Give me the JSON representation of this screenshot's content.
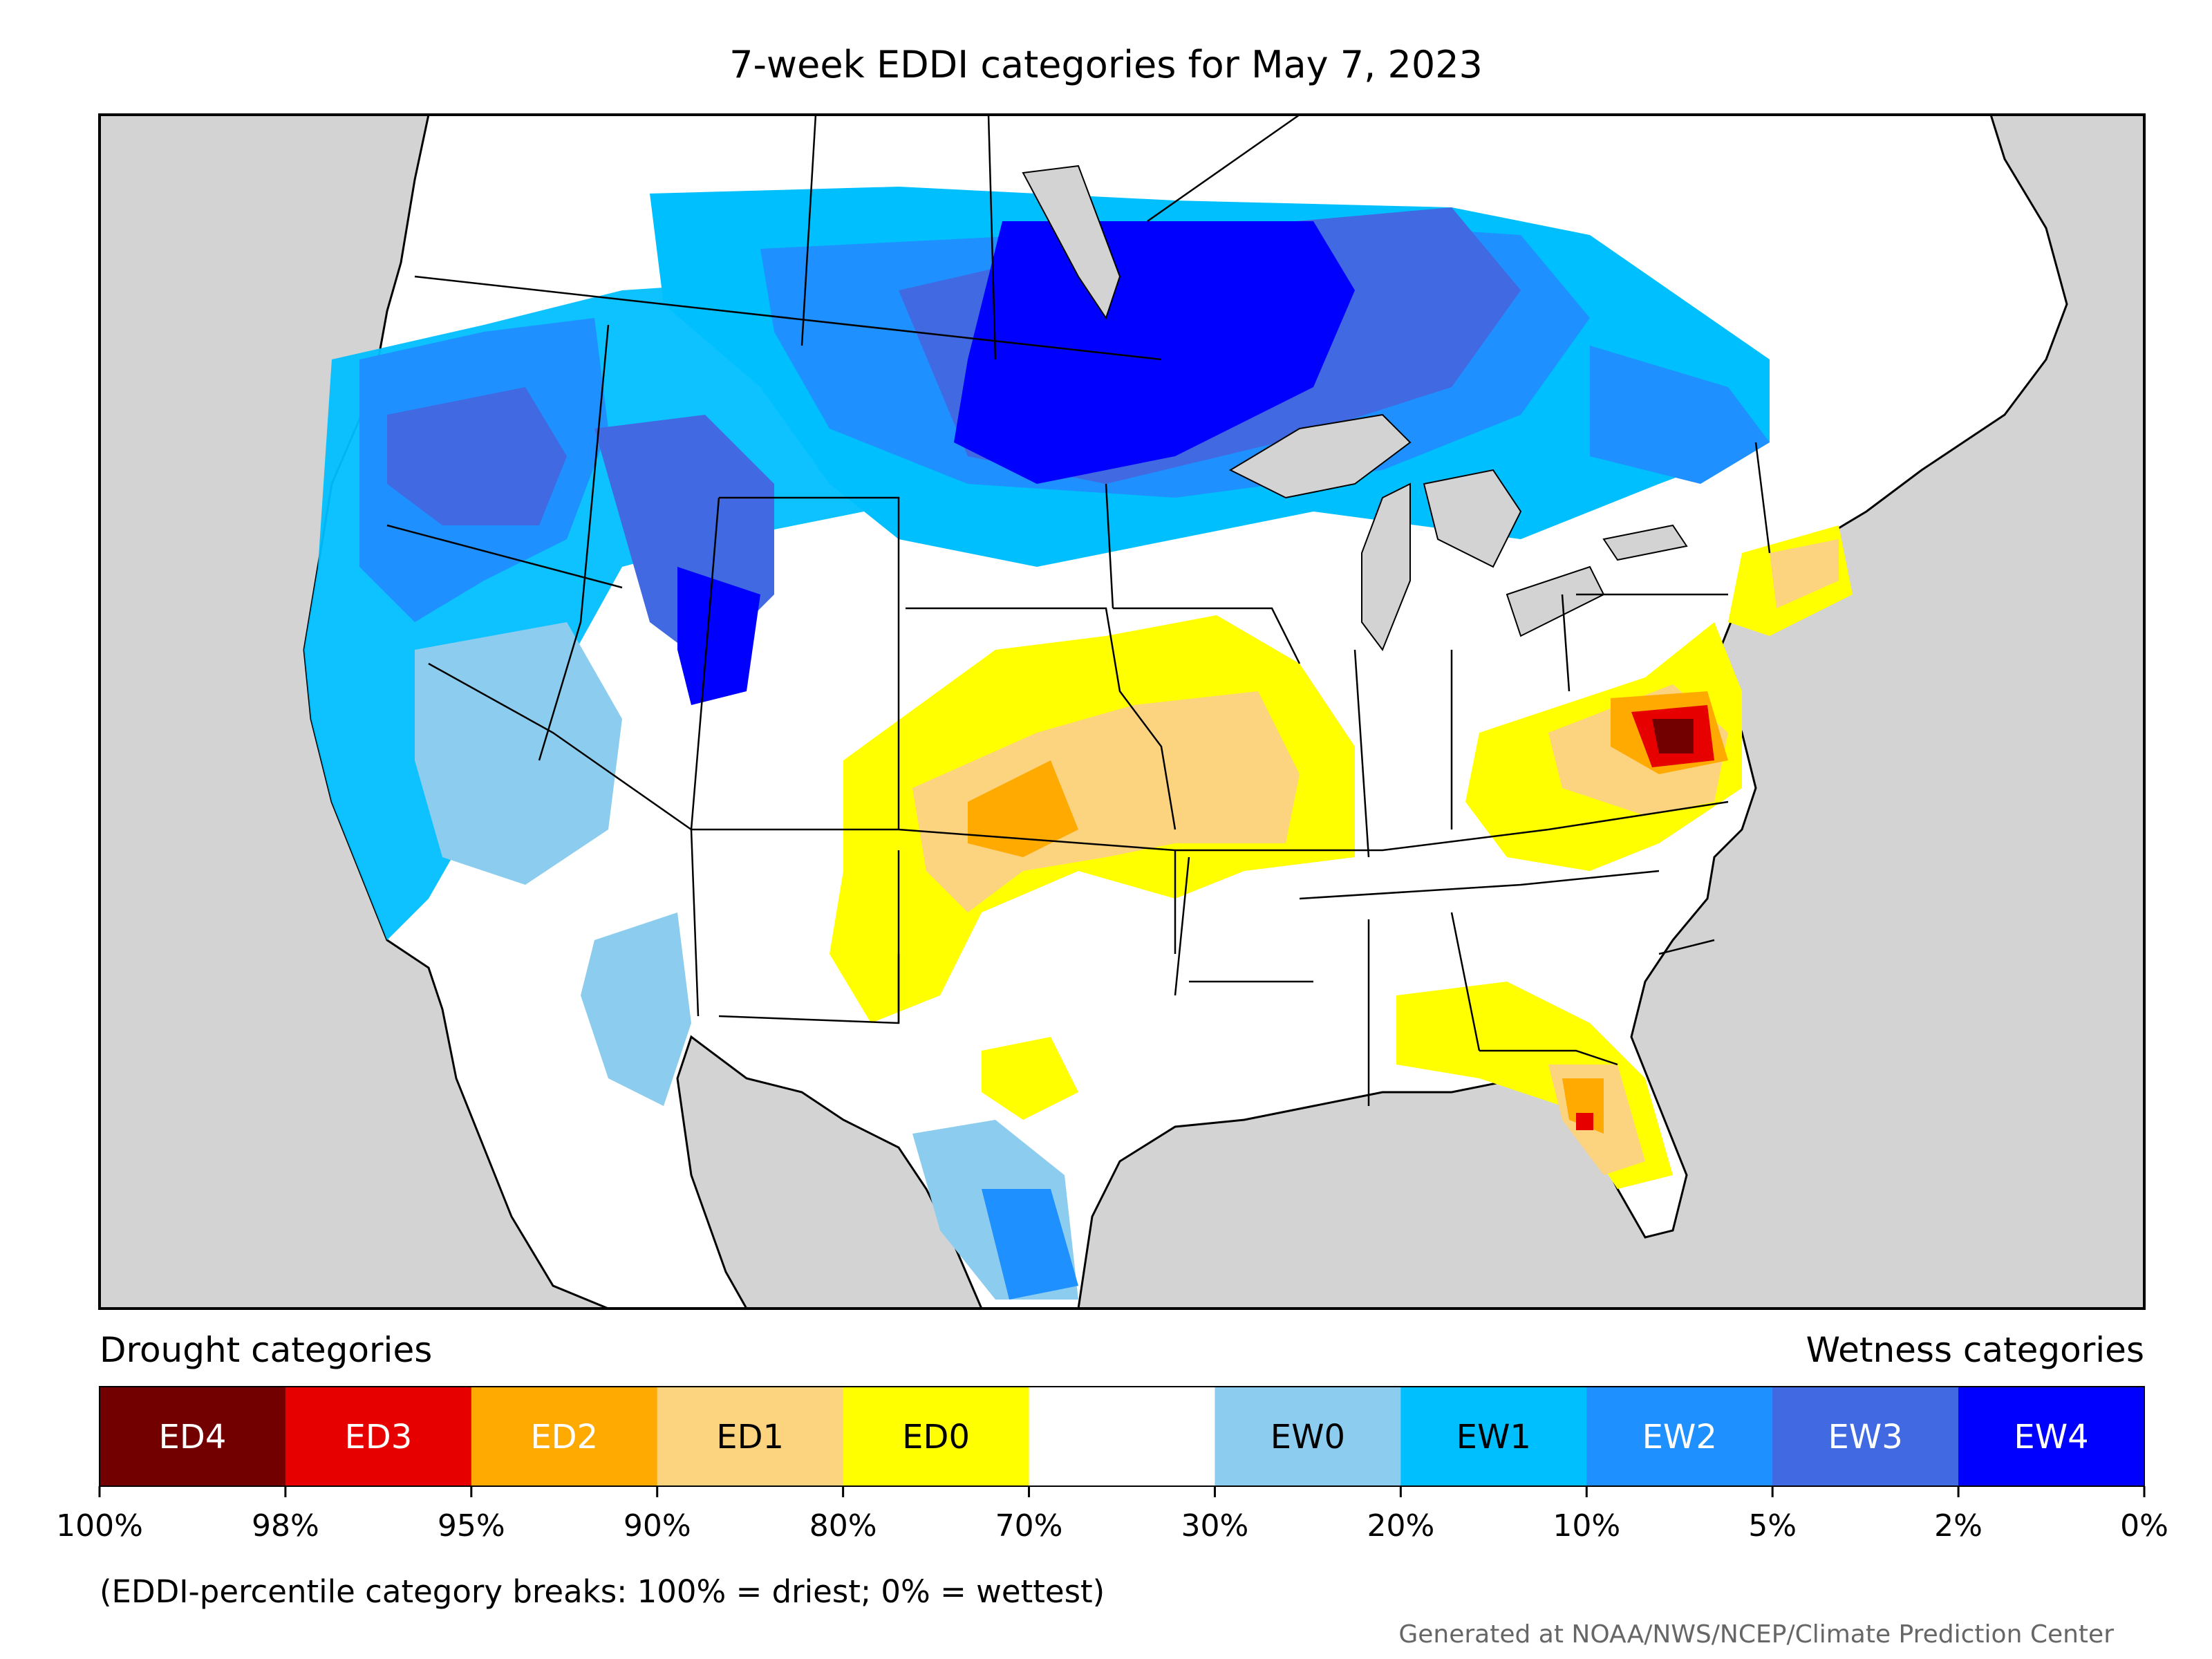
{
  "title": "7-week EDDI categories for May 7, 2023",
  "legend": {
    "drought_label": "Drought categories",
    "wetness_label": "Wetness categories",
    "categories": [
      {
        "label": "ED4",
        "color": "#730000",
        "text_color": "#ffffff"
      },
      {
        "label": "ED3",
        "color": "#e60000",
        "text_color": "#ffffff"
      },
      {
        "label": "ED2",
        "color": "#ffaa00",
        "text_color": "#ffffff"
      },
      {
        "label": "ED1",
        "color": "#fcd37f",
        "text_color": "#000000"
      },
      {
        "label": "ED0",
        "color": "#ffff00",
        "text_color": "#000000"
      },
      {
        "label": "",
        "color": "#ffffff",
        "text_color": "#000000"
      },
      {
        "label": "EW0",
        "color": "#8ccdef",
        "text_color": "#000000"
      },
      {
        "label": "EW1",
        "color": "#00bfff",
        "text_color": "#000000"
      },
      {
        "label": "EW2",
        "color": "#1e90ff",
        "text_color": "#ffffff"
      },
      {
        "label": "EW3",
        "color": "#4169e1",
        "text_color": "#ffffff"
      },
      {
        "label": "EW4",
        "color": "#0000ff",
        "text_color": "#ffffff"
      }
    ],
    "ticks": [
      "100%",
      "98%",
      "95%",
      "90%",
      "80%",
      "70%",
      "30%",
      "20%",
      "10%",
      "5%",
      "2%",
      "0%"
    ],
    "note": "(EDDI-percentile category breaks: 100% = driest; 0% = wettest)"
  },
  "credit": "Generated at NOAA/NWS/NCEP/Climate Prediction Center",
  "colors": {
    "ocean": "#d3d3d3",
    "land": "#ffffff",
    "border": "#000000"
  }
}
